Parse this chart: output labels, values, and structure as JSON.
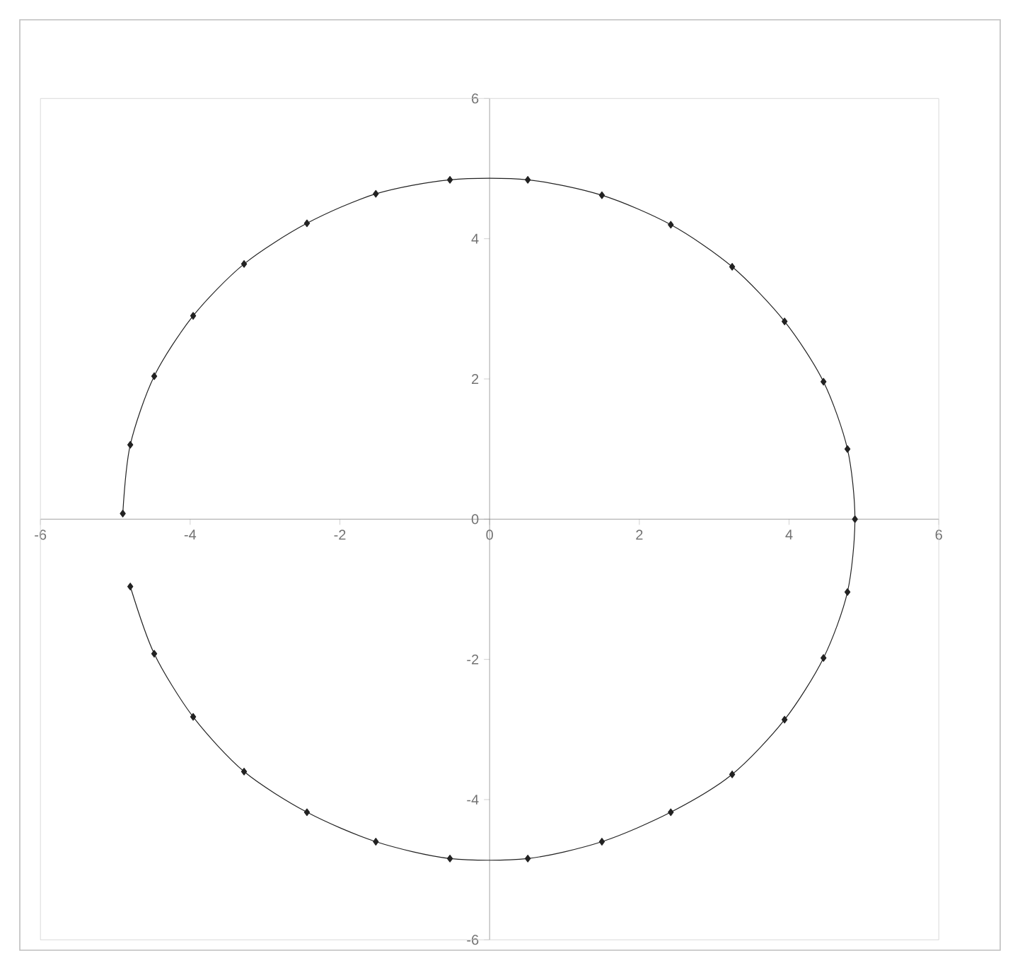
{
  "chart_data": {
    "type": "line",
    "marker": "diamond",
    "line_style": "solid",
    "xlim": [
      -6,
      6
    ],
    "ylim": [
      -6,
      6
    ],
    "xticks": [
      -6,
      -4,
      -2,
      0,
      2,
      4,
      6
    ],
    "yticks": [
      -6,
      -4,
      -2,
      0,
      2,
      4,
      6
    ],
    "grid": false,
    "series": [
      {
        "color": "#222222",
        "x": [
          -4.9,
          -4.8,
          -4.48,
          -3.96,
          -3.28,
          -2.44,
          -1.52,
          -0.53,
          0.51,
          1.5,
          2.42,
          3.24,
          3.94,
          4.46,
          4.78,
          4.88,
          4.78,
          4.46,
          3.94,
          3.24,
          2.42,
          1.5,
          0.51,
          -0.53,
          -1.52,
          -2.44,
          -3.28,
          -3.96,
          -4.48,
          -4.8
        ],
        "values": [
          0.08,
          1.06,
          2.04,
          2.9,
          3.64,
          4.22,
          4.64,
          4.84,
          4.84,
          4.62,
          4.2,
          3.6,
          2.82,
          1.96,
          1.0,
          0.0,
          -1.04,
          -1.98,
          -2.86,
          -3.64,
          -4.18,
          -4.6,
          -4.84,
          -4.84,
          -4.6,
          -4.18,
          -3.6,
          -2.82,
          -1.92,
          -0.96
        ]
      }
    ]
  }
}
